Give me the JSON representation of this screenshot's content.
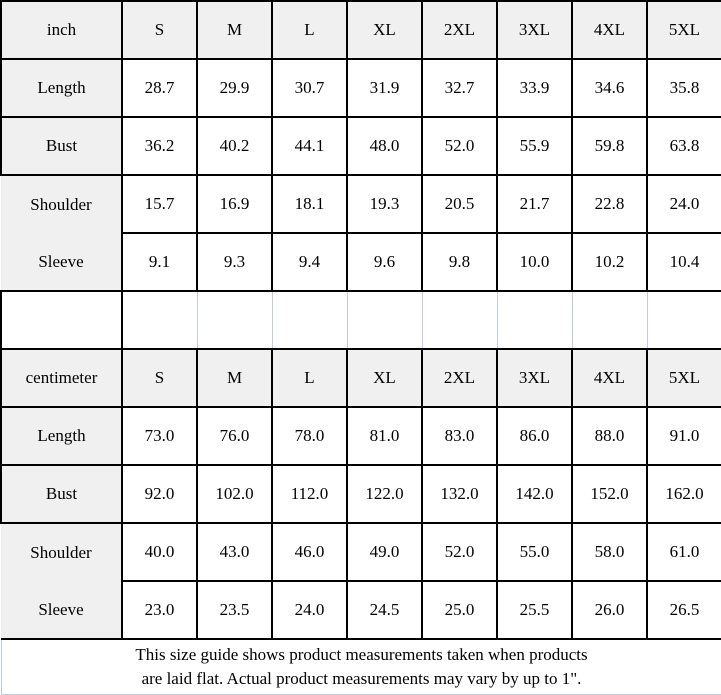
{
  "chart_data": {
    "type": "table",
    "title": "",
    "columns": [
      "",
      "S",
      "M",
      "L",
      "XL",
      "2XL",
      "3XL",
      "4XL",
      "5XL"
    ],
    "rows": [
      [
        "inch",
        "S",
        "M",
        "L",
        "XL",
        "2XL",
        "3XL",
        "4XL",
        "5XL"
      ],
      [
        "Length",
        "28.7",
        "29.9",
        "30.7",
        "31.9",
        "32.7",
        "33.9",
        "34.6",
        "35.8"
      ],
      [
        "Bust",
        "36.2",
        "40.2",
        "44.1",
        "48.0",
        "52.0",
        "55.9",
        "59.8",
        "63.8"
      ],
      [
        "Shoulder",
        "15.7",
        "16.9",
        "18.1",
        "19.3",
        "20.5",
        "21.7",
        "22.8",
        "24.0"
      ],
      [
        "Sleeve",
        "9.1",
        "9.3",
        "9.4",
        "9.6",
        "9.8",
        "10.0",
        "10.2",
        "10.4"
      ],
      [
        "",
        "",
        "",
        "",
        "",
        "",
        "",
        "",
        ""
      ],
      [
        "centimeter",
        "S",
        "M",
        "L",
        "XL",
        "2XL",
        "3XL",
        "4XL",
        "5XL"
      ],
      [
        "Length",
        "73.0",
        "76.0",
        "78.0",
        "81.0",
        "83.0",
        "86.0",
        "88.0",
        "91.0"
      ],
      [
        "Bust",
        "92.0",
        "102.0",
        "112.0",
        "122.0",
        "132.0",
        "142.0",
        "152.0",
        "162.0"
      ],
      [
        "Shoulder",
        "40.0",
        "43.0",
        "46.0",
        "49.0",
        "52.0",
        "55.0",
        "58.0",
        "61.0"
      ],
      [
        "Sleeve",
        "23.0",
        "23.5",
        "24.0",
        "24.5",
        "25.0",
        "25.5",
        "26.0",
        "26.5"
      ]
    ],
    "sections": [
      {
        "unit": "inch",
        "measurements": [
          "Length",
          "Bust",
          "Shoulder",
          "Sleeve"
        ]
      },
      {
        "unit": "centimeter",
        "measurements": [
          "Length",
          "Bust",
          "Shoulder",
          "Sleeve"
        ]
      }
    ],
    "legend_position": "none",
    "grid": true
  },
  "note": {
    "line1": "This size guide shows product measurements taken when products",
    "line2": "are laid flat. Actual product measurements may vary by up to 1\"."
  },
  "colors": {
    "header_bg": "#f0f0f0",
    "grid_line": "#000000",
    "light_line": "#c3cbdd",
    "text": "#000000",
    "background": "#ffffff"
  }
}
